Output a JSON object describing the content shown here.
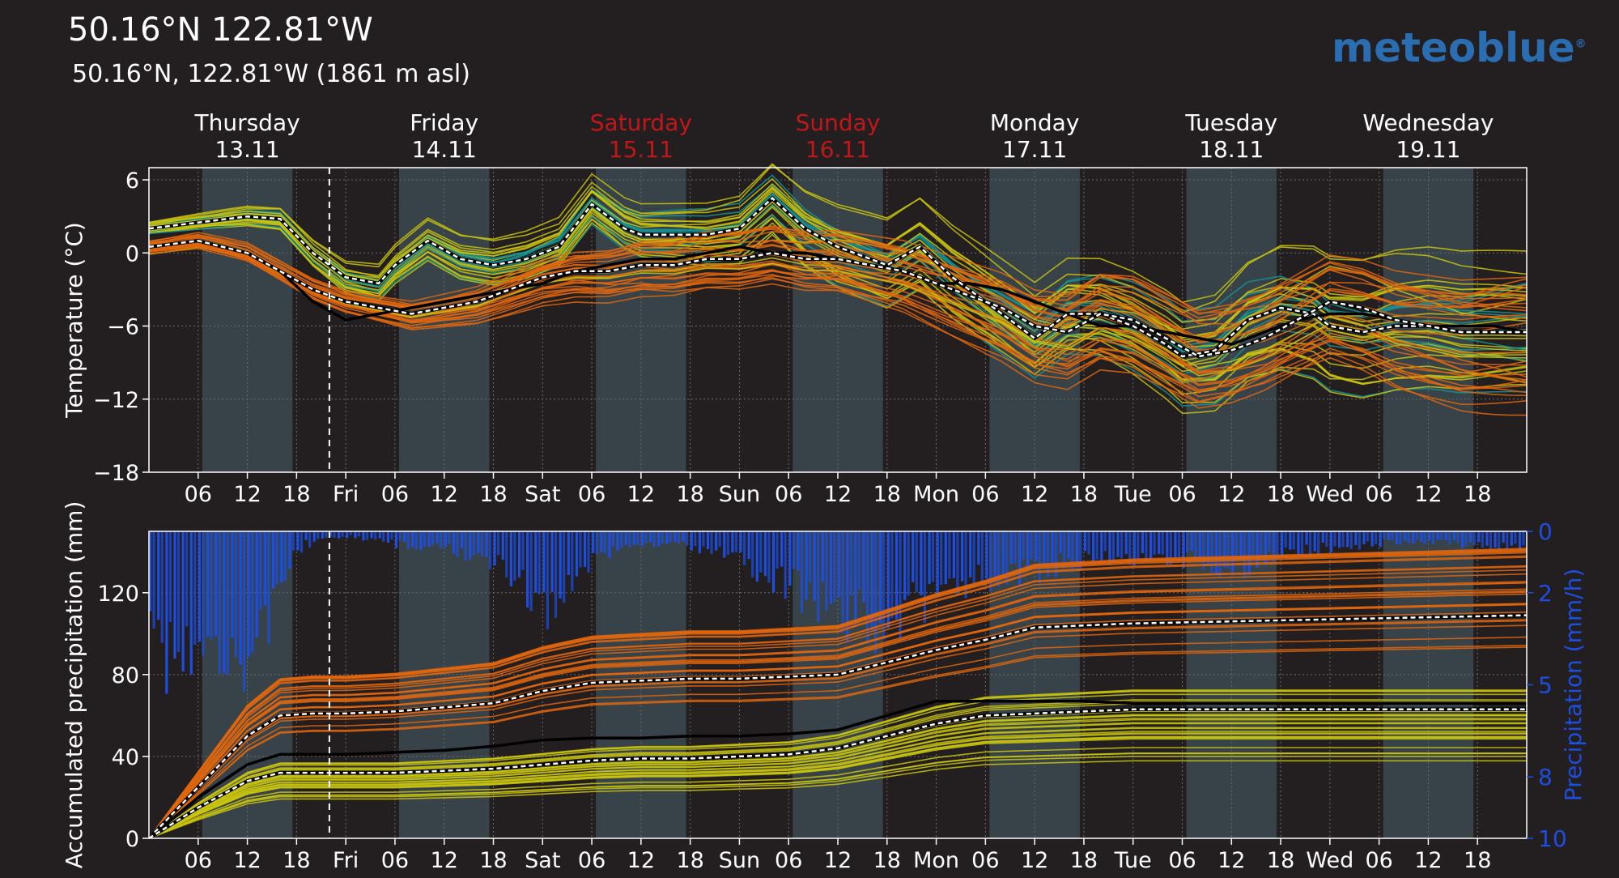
{
  "title": "50.16°N 122.81°W",
  "subtitle": "50.16°N, 122.81°W (1861 m asl)",
  "logo_text": "meteoblue",
  "colors": {
    "background": "#231f20",
    "day_band": "#374349",
    "weekend": "#c0171a",
    "precip_bars": "#1d4ee0",
    "ensemble_warm": "#e0660e",
    "ensemble_mid": "#c9c40e",
    "ensemble_cool": "#139496",
    "control": "#000000",
    "median": "#ffffff"
  },
  "days": [
    {
      "name": "Thursday",
      "date": "13.11",
      "weekend": false
    },
    {
      "name": "Friday",
      "date": "14.11",
      "weekend": false
    },
    {
      "name": "Saturday",
      "date": "15.11",
      "weekend": true
    },
    {
      "name": "Sunday",
      "date": "16.11",
      "weekend": true
    },
    {
      "name": "Monday",
      "date": "17.11",
      "weekend": false
    },
    {
      "name": "Tuesday",
      "date": "18.11",
      "weekend": false
    },
    {
      "name": "Wednesday",
      "date": "19.11",
      "weekend": false
    }
  ],
  "x_tick_labels": [
    "06",
    "12",
    "18",
    "Fri",
    "06",
    "12",
    "18",
    "Sat",
    "06",
    "12",
    "18",
    "Sun",
    "06",
    "12",
    "18",
    "Mon",
    "06",
    "12",
    "18",
    "Tue",
    "06",
    "12",
    "18",
    "Wed",
    "06",
    "12",
    "18"
  ],
  "chart_data": [
    {
      "type": "line",
      "ylabel": "Temperature (°C)",
      "ylim": [
        -18,
        7
      ],
      "yticks": [
        "6",
        "0",
        "−6",
        "−12",
        "−18"
      ],
      "x_unit": "hours since Thursday 13.11 00:00",
      "xlim": [
        0,
        168
      ],
      "now_marker_hour": 22,
      "median_high": {
        "x": [
          0,
          6,
          12,
          16,
          20,
          24,
          28,
          30,
          34,
          38,
          42,
          46,
          50,
          54,
          58,
          60,
          64,
          68,
          72,
          76,
          80,
          84,
          86,
          90,
          94,
          98,
          102,
          106,
          108,
          112,
          116,
          120,
          124,
          126,
          130,
          134,
          138,
          142,
          144,
          148,
          152,
          156,
          160,
          164,
          168
        ],
        "y": [
          2,
          2.5,
          3,
          2.8,
          0,
          -2,
          -2.5,
          -1,
          1,
          -0.5,
          -1,
          -0.5,
          0.5,
          4,
          2,
          1.5,
          1.5,
          1.5,
          2,
          4.5,
          2,
          0.5,
          0,
          -1,
          0.5,
          -2,
          -4,
          -6,
          -7,
          -5,
          -5,
          -6,
          -7.5,
          -8.5,
          -8,
          -5.5,
          -4.5,
          -5,
          -6,
          -6.5,
          -6,
          -6,
          -6.5,
          -6.5,
          -6.5
        ]
      },
      "median_low": {
        "x": [
          0,
          6,
          12,
          16,
          20,
          24,
          28,
          32,
          36,
          40,
          44,
          48,
          52,
          56,
          60,
          64,
          68,
          72,
          76,
          80,
          84,
          88,
          92,
          96,
          100,
          104,
          108,
          112,
          116,
          120,
          124,
          128,
          132,
          136,
          140,
          144,
          148,
          152,
          156,
          160,
          164,
          168
        ],
        "y": [
          0.5,
          1,
          0,
          -1.5,
          -3,
          -4,
          -4.5,
          -5,
          -4.5,
          -4,
          -3,
          -2,
          -1.5,
          -1.5,
          -1,
          -1,
          -0.5,
          -0.5,
          0,
          -0.5,
          -0.5,
          -1,
          -1.5,
          -2.5,
          -3.5,
          -4.5,
          -6,
          -6.5,
          -5,
          -5.5,
          -7,
          -8.5,
          -8,
          -7,
          -5.5,
          -4,
          -4.5,
          -5.5,
          -6,
          -6.5,
          -6.5,
          -6.5
        ]
      },
      "control": {
        "x": [
          0,
          6,
          12,
          16,
          20,
          24,
          28,
          32,
          36,
          40,
          44,
          48,
          52,
          56,
          60,
          64,
          68,
          72,
          76,
          80,
          84,
          88,
          92,
          96,
          100,
          104,
          108,
          112,
          116,
          120,
          124,
          128,
          132,
          136,
          140,
          144,
          148,
          152,
          156,
          160,
          164,
          168
        ],
        "y": [
          0.5,
          1,
          0,
          -1.5,
          -4,
          -5.5,
          -5,
          -4.5,
          -4,
          -3.5,
          -3,
          -2.5,
          -1.5,
          -1,
          -0.5,
          -0.5,
          0,
          0.5,
          0,
          0,
          -0.5,
          -1,
          -1.5,
          -2.5,
          -2.5,
          -3,
          -4,
          -5,
          -6,
          -6,
          -6.5,
          -7,
          -7.5,
          -6.5,
          -5.5,
          -5,
          -5,
          -5.5,
          -6,
          -6,
          -6,
          -6.5
        ]
      }
    },
    {
      "type": "line",
      "ylabel": "Accumulated precipitation (mm)",
      "ylim": [
        0,
        150
      ],
      "yticks": [
        "0",
        "40",
        "80",
        "120"
      ],
      "y2label": "Precipitation (mm/h)",
      "y2ticks": [
        "0",
        "2",
        "5",
        "8",
        "10"
      ],
      "median_high": {
        "x": [
          0,
          6,
          12,
          16,
          20,
          24,
          30,
          36,
          42,
          48,
          54,
          60,
          66,
          72,
          78,
          84,
          90,
          96,
          102,
          108,
          114,
          120,
          132,
          144,
          156,
          168
        ],
        "y": [
          0,
          25,
          50,
          60,
          61,
          61,
          62,
          64,
          66,
          72,
          76,
          77,
          78,
          78,
          79,
          80,
          86,
          92,
          97,
          103,
          104,
          105,
          106,
          107,
          108,
          109
        ]
      },
      "median_low": {
        "x": [
          0,
          6,
          12,
          16,
          20,
          24,
          30,
          36,
          42,
          48,
          54,
          60,
          66,
          72,
          78,
          84,
          90,
          96,
          102,
          108,
          114,
          120,
          132,
          144,
          156,
          168
        ],
        "y": [
          0,
          15,
          28,
          32,
          32,
          32,
          32,
          33,
          34,
          36,
          38,
          39,
          39,
          40,
          41,
          44,
          50,
          56,
          60,
          61,
          62,
          63,
          63,
          63,
          63,
          63
        ]
      },
      "control": {
        "x": [
          0,
          6,
          12,
          16,
          20,
          24,
          30,
          36,
          42,
          48,
          54,
          60,
          66,
          72,
          78,
          84,
          90,
          96,
          102,
          108,
          114,
          120,
          132,
          144,
          156,
          168
        ],
        "y": [
          0,
          20,
          36,
          41,
          41,
          41,
          42,
          43,
          45,
          48,
          49,
          49,
          50,
          50,
          51,
          53,
          60,
          67,
          67,
          67,
          67,
          66,
          66,
          66,
          66,
          66
        ]
      },
      "precip_rate_profile": {
        "x": [
          0,
          3,
          6,
          9,
          12,
          14,
          16,
          18,
          20,
          24,
          30,
          36,
          42,
          44,
          46,
          48,
          50,
          52,
          54,
          56,
          58,
          60,
          64,
          68,
          72,
          76,
          80,
          84,
          88,
          90,
          92,
          96,
          100,
          104,
          108,
          112,
          116,
          120,
          124,
          128,
          132,
          136,
          140,
          144,
          148,
          152,
          156,
          160,
          164,
          168
        ],
        "y": [
          4.7,
          4.7,
          3.8,
          4.2,
          4.9,
          3.5,
          1.5,
          0.7,
          0.3,
          0.2,
          0.5,
          0.7,
          1.2,
          2.0,
          2.5,
          3.0,
          2.6,
          1.8,
          1.0,
          0.8,
          0.7,
          0.5,
          0.4,
          0.8,
          1.2,
          1.8,
          2.5,
          3.2,
          3.5,
          3.5,
          3.0,
          2.5,
          2.0,
          1.8,
          1.5,
          1.2,
          1.0,
          1.0,
          1.0,
          1.2,
          1.5,
          1.0,
          0.8,
          0.6,
          0.5,
          0.4,
          0.4,
          0.5,
          0.6,
          0.6
        ]
      }
    }
  ]
}
